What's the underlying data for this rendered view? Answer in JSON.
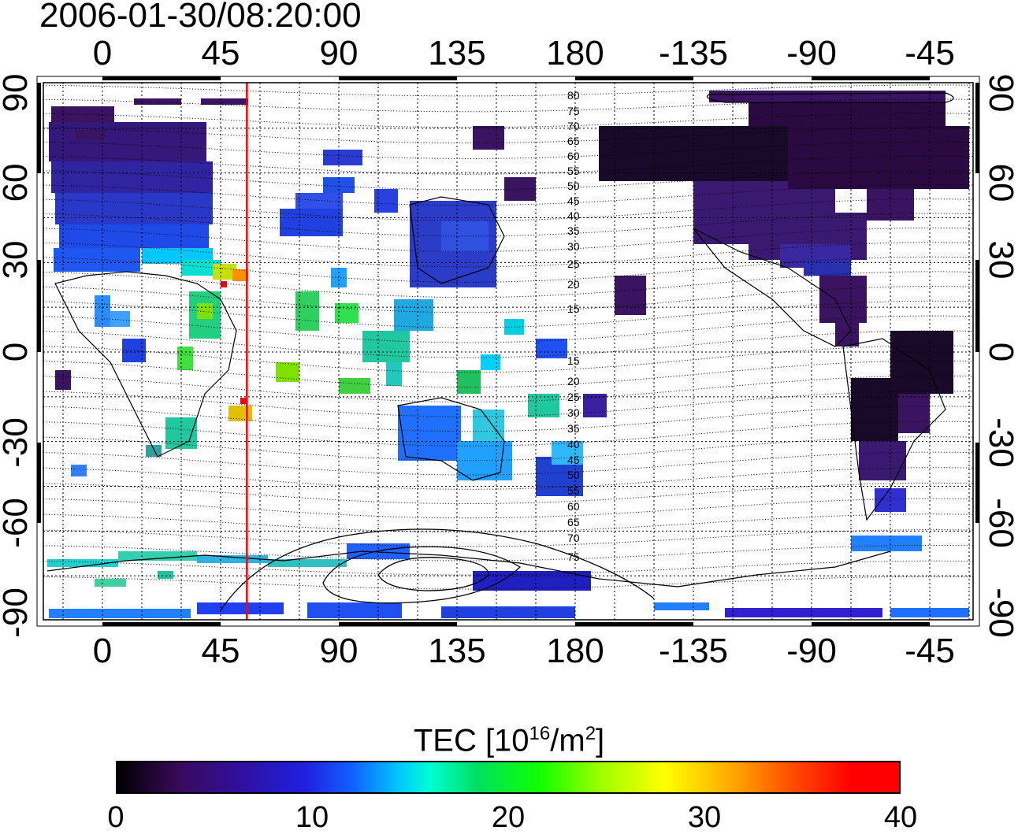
{
  "timestamp": "2006-01-30/08:20:00",
  "longitude_ticks": [
    "0",
    "45",
    "90",
    "135",
    "180",
    "-135",
    "-90",
    "-45"
  ],
  "latitude_ticks": [
    "90",
    "60",
    "30",
    "0",
    "-30",
    "-60",
    "-90"
  ],
  "contour_labels": [
    "80",
    "75",
    "70",
    "65",
    "60",
    "55",
    "50",
    "45",
    "40",
    "35",
    "30",
    "25",
    "20",
    "15",
    "15",
    "20",
    "25",
    "30",
    "35",
    "40",
    "45",
    "50",
    "55",
    "60",
    "65",
    "70",
    "75"
  ],
  "colorbar": {
    "title_prefix": "TEC  [10",
    "title_exp1": "16",
    "title_mid": "/m",
    "title_exp2": "2",
    "title_suffix": "]",
    "ticks": [
      "0",
      "10",
      "20",
      "30",
      "40"
    ],
    "min": 0,
    "max": 40
  },
  "terminator_longitude": 55
}
